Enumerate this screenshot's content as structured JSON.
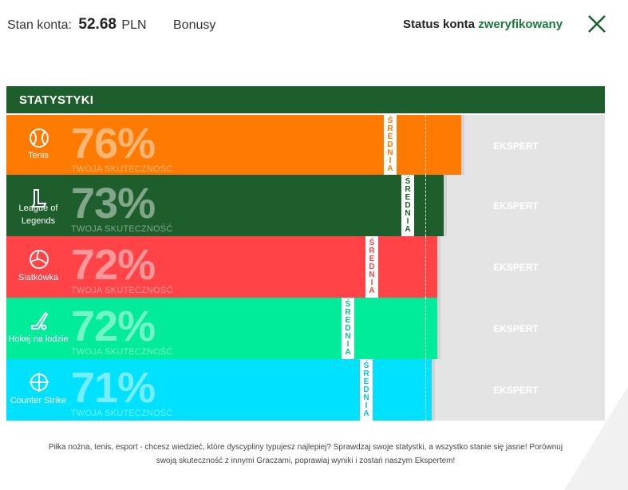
{
  "header": {
    "balance_label": "Stan konta:",
    "balance_amount": "52.68",
    "balance_currency": "PLN",
    "bonus_link": "Bonusy",
    "status_label": "Status konta",
    "status_value": "zweryfikowany"
  },
  "stats": {
    "title": "STATYSTYKI",
    "avg_label": "ŚREDNIA",
    "expert_label": "EKSPERT",
    "pct_caption": "TWOJA SKUTECZNOŚĆ",
    "rows": [
      {
        "sport": "Tenis",
        "percent": "76%",
        "fill": 0.76,
        "avg": 0.63,
        "color": "#ff7a00",
        "avg_color": "#ff7a00",
        "icon": "tennis-ball-icon"
      },
      {
        "sport": "League of Legends",
        "percent": "73%",
        "fill": 0.73,
        "avg": 0.66,
        "color": "#1e5e2d",
        "avg_color": "#1e5e2d",
        "icon": "league-of-legends-icon"
      },
      {
        "sport": "Siatkówka",
        "percent": "72%",
        "fill": 0.72,
        "avg": 0.6,
        "color": "#ff4347",
        "avg_color": "#ff4347",
        "icon": "volleyball-icon"
      },
      {
        "sport": "Hokej na lodzie",
        "percent": "72%",
        "fill": 0.72,
        "avg": 0.56,
        "color": "#00ec9b",
        "avg_color": "#00c887",
        "icon": "hockey-stick-icon"
      },
      {
        "sport": "Counter Strike",
        "percent": "71%",
        "fill": 0.71,
        "avg": 0.59,
        "color": "#00e1ff",
        "avg_color": "#00c2dc",
        "icon": "crosshair-icon"
      }
    ]
  },
  "footer": {
    "line1": "Piłka nożna, tenis, esport - chcesz wiedzieć, które dyscypliny typujesz najlepiej? Sprawdzaj swoje statystki, a wszystko stanie się jasne! Porównuj",
    "line2": "swoją skuteczność z innymi Graczami, poprawiaj wyniki i zostań naszym Ekspertem!"
  }
}
